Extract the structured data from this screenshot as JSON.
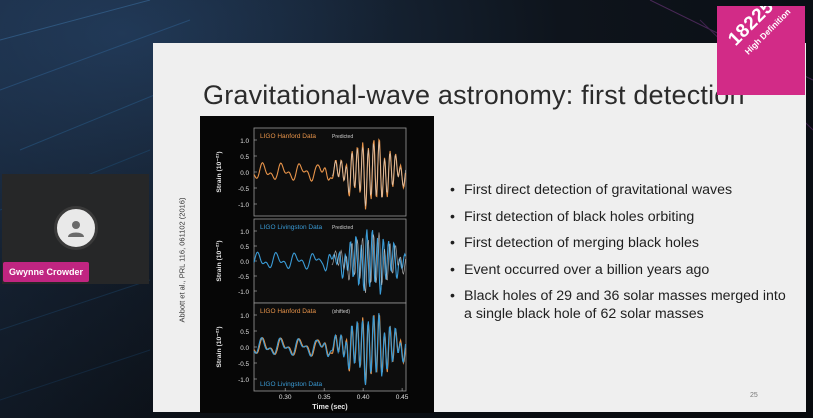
{
  "participant": {
    "name": "Gwynne Crowder"
  },
  "logo": {
    "number": "18225",
    "subtitle": "High Definition"
  },
  "slide": {
    "title": "Gravitational-wave astronomy: first detection",
    "bullets": [
      "First direct detection of gravitational waves",
      "First detection of black holes orbiting",
      "First detection of merging black holes",
      "Event occurred over a billion years ago",
      "Black holes of 29 and 36 solar masses merged into a single black hole of 62 solar masses"
    ],
    "page_number": "25",
    "citation": "Abbott et al., PRL 116, 061102 (2016)"
  },
  "figure": {
    "panels": [
      {
        "label": "LIGO Hanford Data",
        "note": "Predicted"
      },
      {
        "label": "LIGO Livingston Data",
        "note": "Predicted"
      },
      {
        "label": "LIGO Hanford Data",
        "note": "(shifted)",
        "label2": "LIGO Livingston Data"
      }
    ],
    "ylabel": "Strain (10⁻²¹)",
    "yticks": [
      "1.0",
      "0.5",
      "0.0",
      "-0.5",
      "-1.0"
    ],
    "xticks": [
      "0.30",
      "0.35",
      "0.40",
      "0.45"
    ],
    "xlabel": "Time (sec)",
    "colors": {
      "hanford": "#e8944a",
      "livingston": "#3a9bd6",
      "predicted": "#d8d8d8"
    }
  }
}
